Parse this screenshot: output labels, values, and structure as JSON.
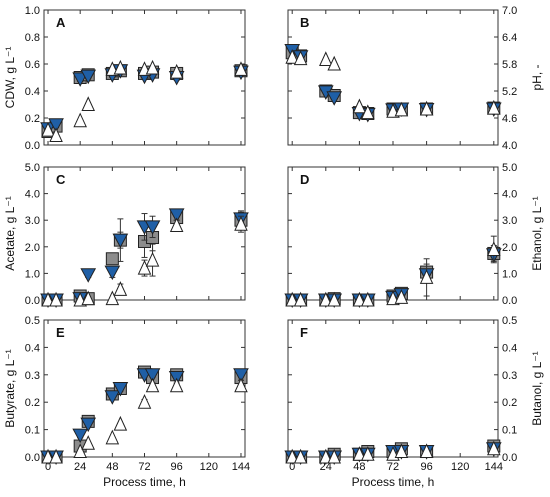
{
  "figure": {
    "x_ticks": [
      "0",
      "24",
      "48",
      "72",
      "96",
      "120",
      "144"
    ],
    "x_label": "Process time, h",
    "colors": {
      "square": "#8c8c8c",
      "triangle_down": "#1f5fa6",
      "triangle_up": "#ffffff",
      "stroke": "#222222"
    },
    "marker_types": [
      "square",
      "triangle_down",
      "triangle_up"
    ]
  },
  "chart_data": [
    {
      "type": "scatter",
      "panel": "A",
      "ylabel": "CDW, g L⁻¹",
      "y_side": "left",
      "ylim": [
        0,
        1.0
      ],
      "yticks": [
        "0.0",
        "0.2",
        "0.4",
        "0.6",
        "0.8",
        "1.0"
      ],
      "show_x_ticklabels": false,
      "show_x_label": false,
      "series": [
        {
          "marker": "square",
          "x": [
            0,
            6,
            24,
            30,
            48,
            54,
            72,
            78,
            96,
            144
          ],
          "y": [
            0.1,
            0.14,
            0.5,
            0.52,
            0.53,
            0.55,
            0.53,
            0.54,
            0.53,
            0.55
          ],
          "err": [
            0.03,
            0.02,
            0.02,
            0.02,
            0.02,
            0.02,
            0.03,
            0.03,
            0.02,
            0.02
          ]
        },
        {
          "marker": "triangle_down",
          "x": [
            0,
            6,
            24,
            30,
            48,
            54,
            72,
            78,
            96,
            144
          ],
          "y": [
            0.12,
            0.15,
            0.49,
            0.51,
            0.52,
            0.55,
            0.51,
            0.52,
            0.5,
            0.54
          ],
          "err": [
            0.02,
            0.02,
            0.02,
            0.02,
            0.02,
            0.02,
            0.02,
            0.02,
            0.02,
            0.02
          ]
        },
        {
          "marker": "triangle_up",
          "x": [
            0,
            6,
            24,
            30,
            48,
            54,
            72,
            78,
            96,
            144
          ],
          "y": [
            0.11,
            0.07,
            0.18,
            0.3,
            0.56,
            0.57,
            0.56,
            0.57,
            0.54,
            0.56
          ],
          "err": [
            0,
            0,
            0,
            0,
            0,
            0,
            0,
            0,
            0,
            0
          ]
        }
      ]
    },
    {
      "type": "scatter",
      "panel": "B",
      "ylabel": "pH, -",
      "y_side": "right",
      "ylim": [
        4.0,
        7.0
      ],
      "yticks": [
        "4.0",
        "4.6",
        "5.2",
        "5.8",
        "6.4",
        "7.0"
      ],
      "show_x_ticklabels": false,
      "show_x_label": false,
      "series": [
        {
          "marker": "square",
          "x": [
            0,
            6,
            24,
            30,
            48,
            54,
            72,
            78,
            96,
            144
          ],
          "y": [
            6.05,
            5.98,
            5.2,
            5.1,
            4.72,
            4.7,
            4.8,
            4.8,
            4.8,
            4.82
          ],
          "err": [
            0,
            0,
            0,
            0,
            0,
            0,
            0,
            0,
            0,
            0
          ]
        },
        {
          "marker": "triangle_down",
          "x": [
            0,
            6,
            24,
            30,
            48,
            54,
            72,
            78,
            96,
            144
          ],
          "y": [
            6.1,
            5.96,
            5.18,
            5.05,
            4.7,
            4.68,
            4.78,
            4.8,
            4.79,
            4.8
          ],
          "err": [
            0,
            0,
            0,
            0,
            0,
            0,
            0,
            0,
            0,
            0
          ]
        },
        {
          "marker": "triangle_up",
          "x": [
            0,
            6,
            24,
            30,
            48,
            54,
            72,
            78,
            96,
            144
          ],
          "y": [
            5.95,
            5.92,
            5.9,
            5.8,
            4.85,
            4.72,
            4.75,
            4.78,
            4.8,
            4.82
          ],
          "err": [
            0,
            0,
            0,
            0,
            0,
            0,
            0,
            0,
            0,
            0
          ]
        }
      ]
    },
    {
      "type": "scatter",
      "panel": "C",
      "ylabel": "Acetate, g L⁻¹",
      "y_side": "left",
      "ylim": [
        0,
        5.0
      ],
      "yticks": [
        "0.0",
        "1.0",
        "2.0",
        "3.0",
        "4.0",
        "5.0"
      ],
      "show_x_ticklabels": false,
      "show_x_label": false,
      "series": [
        {
          "marker": "square",
          "x": [
            0,
            6,
            24,
            30,
            48,
            54,
            72,
            78,
            96,
            144
          ],
          "y": [
            0.0,
            0.0,
            0.15,
            0.05,
            1.55,
            2.25,
            2.2,
            2.35,
            3.1,
            3.0
          ],
          "err": [
            0,
            0,
            0.1,
            0.1,
            0.2,
            0.8,
            0.6,
            0.5,
            0.2,
            0.3
          ]
        },
        {
          "marker": "triangle_down",
          "x": [
            0,
            6,
            24,
            30,
            48,
            54,
            72,
            78,
            96,
            144
          ],
          "y": [
            0.0,
            0.0,
            0.05,
            0.95,
            1.05,
            2.25,
            2.75,
            2.75,
            3.2,
            3.05
          ],
          "err": [
            0,
            0,
            0,
            0.1,
            0.2,
            0.3,
            0.5,
            0.4,
            0.2,
            0.3
          ]
        },
        {
          "marker": "triangle_up",
          "x": [
            0,
            6,
            24,
            30,
            48,
            54,
            72,
            78,
            96,
            144
          ],
          "y": [
            0.0,
            0.0,
            0.0,
            0.05,
            0.05,
            0.4,
            1.2,
            1.5,
            2.8,
            2.85
          ],
          "err": [
            0,
            0,
            0,
            0,
            0,
            0.2,
            0.3,
            0.6,
            0.2,
            0.3
          ]
        }
      ]
    },
    {
      "type": "scatter",
      "panel": "D",
      "ylabel": "Ethanol, g L⁻¹",
      "y_side": "right",
      "ylim": [
        0,
        5.0
      ],
      "yticks": [
        "0.0",
        "1.0",
        "2.0",
        "3.0",
        "4.0",
        "5.0"
      ],
      "show_x_ticklabels": false,
      "show_x_label": false,
      "series": [
        {
          "marker": "square",
          "x": [
            0,
            6,
            24,
            30,
            48,
            54,
            72,
            78,
            96,
            144
          ],
          "y": [
            0.0,
            0.0,
            0.0,
            0.05,
            0.0,
            0.0,
            0.15,
            0.25,
            1.05,
            1.75
          ],
          "err": [
            0,
            0,
            0,
            0,
            0,
            0,
            0.1,
            0.1,
            0.3,
            0.3
          ]
        },
        {
          "marker": "triangle_down",
          "x": [
            0,
            6,
            24,
            30,
            48,
            54,
            72,
            78,
            96,
            144
          ],
          "y": [
            0.0,
            0.0,
            0.0,
            0.0,
            0.0,
            0.0,
            0.1,
            0.2,
            0.95,
            1.7
          ],
          "err": [
            0,
            0,
            0,
            0,
            0,
            0,
            0.1,
            0.1,
            0.2,
            0.2
          ]
        },
        {
          "marker": "triangle_up",
          "x": [
            0,
            6,
            24,
            30,
            48,
            54,
            72,
            78,
            96,
            144
          ],
          "y": [
            0.0,
            0.0,
            0.0,
            0.0,
            0.0,
            0.0,
            0.05,
            0.1,
            0.85,
            1.9
          ],
          "err": [
            0,
            0,
            0,
            0,
            0,
            0,
            0.1,
            0.1,
            0.7,
            0.5
          ]
        }
      ]
    },
    {
      "type": "scatter",
      "panel": "E",
      "ylabel": "Butyrate, g L⁻¹",
      "y_side": "left",
      "ylim": [
        0,
        0.5
      ],
      "yticks": [
        "0.0",
        "0.1",
        "0.2",
        "0.3",
        "0.4",
        "0.5"
      ],
      "show_x_ticklabels": true,
      "show_x_label": true,
      "series": [
        {
          "marker": "square",
          "x": [
            0,
            6,
            24,
            30,
            48,
            54,
            72,
            78,
            96,
            144
          ],
          "y": [
            0.0,
            0.0,
            0.04,
            0.13,
            0.23,
            0.25,
            0.31,
            0.29,
            0.3,
            0.29
          ],
          "err": [
            0,
            0,
            0.01,
            0.01,
            0.01,
            0.01,
            0.02,
            0.02,
            0.01,
            0.03
          ]
        },
        {
          "marker": "triangle_down",
          "x": [
            0,
            6,
            24,
            30,
            48,
            54,
            72,
            78,
            96,
            144
          ],
          "y": [
            0.0,
            0.0,
            0.08,
            0.12,
            0.22,
            0.25,
            0.3,
            0.3,
            0.29,
            0.3
          ],
          "err": [
            0,
            0,
            0.01,
            0.01,
            0.01,
            0.01,
            0.01,
            0.01,
            0.01,
            0.02
          ]
        },
        {
          "marker": "triangle_up",
          "x": [
            0,
            6,
            24,
            30,
            48,
            54,
            72,
            78,
            96,
            144
          ],
          "y": [
            0.0,
            0.0,
            0.02,
            0.05,
            0.07,
            0.12,
            0.2,
            0.26,
            0.26,
            0.26
          ],
          "err": [
            0,
            0,
            0,
            0,
            0,
            0,
            0.01,
            0.01,
            0.01,
            0.02
          ]
        }
      ]
    },
    {
      "type": "scatter",
      "panel": "F",
      "ylabel": "Butanol, g L⁻¹",
      "y_side": "right",
      "ylim": [
        0,
        0.5
      ],
      "yticks": [
        "0.0",
        "0.1",
        "0.2",
        "0.3",
        "0.4",
        "0.5"
      ],
      "show_x_ticklabels": true,
      "show_x_label": true,
      "series": [
        {
          "marker": "square",
          "x": [
            0,
            6,
            24,
            30,
            48,
            54,
            72,
            78,
            96,
            144
          ],
          "y": [
            0.0,
            0.0,
            0.0,
            0.01,
            0.01,
            0.02,
            0.02,
            0.03,
            0.02,
            0.04
          ],
          "err": [
            0,
            0,
            0,
            0,
            0,
            0,
            0,
            0.01,
            0.01,
            0.01
          ]
        },
        {
          "marker": "triangle_down",
          "x": [
            0,
            6,
            24,
            30,
            48,
            54,
            72,
            78,
            96,
            144
          ],
          "y": [
            0.0,
            0.0,
            0.0,
            0.0,
            0.01,
            0.01,
            0.02,
            0.02,
            0.02,
            0.03
          ],
          "err": [
            0,
            0,
            0,
            0,
            0,
            0,
            0,
            0,
            0,
            0.01
          ]
        },
        {
          "marker": "triangle_up",
          "x": [
            0,
            6,
            24,
            30,
            48,
            54,
            72,
            78,
            96,
            144
          ],
          "y": [
            0.0,
            0.0,
            0.0,
            0.0,
            0.01,
            0.01,
            0.01,
            0.02,
            0.02,
            0.03
          ],
          "err": [
            0,
            0,
            0,
            0,
            0,
            0,
            0,
            0,
            0,
            0.01
          ]
        }
      ]
    }
  ]
}
